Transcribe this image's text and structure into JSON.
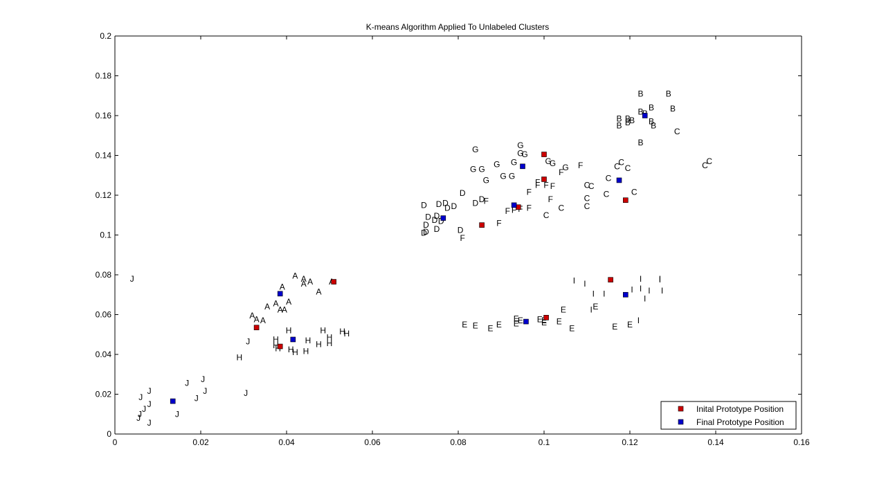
{
  "chart_data": {
    "type": "scatter",
    "title": "K-means Algorithm Applied To Unlabeled Clusters",
    "xlabel": "",
    "ylabel": "",
    "xlim": [
      0,
      0.16
    ],
    "ylim": [
      0,
      0.2
    ],
    "xticks": [
      "0",
      "0.02",
      "0.04",
      "0.06",
      "0.08",
      "0.1",
      "0.12",
      "0.14",
      "0.16"
    ],
    "yticks": [
      "0",
      "0.02",
      "0.04",
      "0.06",
      "0.08",
      "0.1",
      "0.12",
      "0.14",
      "0.16",
      "0.18",
      "0.2"
    ],
    "xtick_values": [
      0,
      0.02,
      0.04,
      0.06,
      0.08,
      0.1,
      0.12,
      0.14,
      0.16
    ],
    "ytick_values": [
      0,
      0.02,
      0.04,
      0.06,
      0.08,
      0.1,
      0.12,
      0.14,
      0.16,
      0.18,
      0.2
    ],
    "grid": false,
    "legend_position": "bottom-right",
    "legend": [
      {
        "label": "Inital Prototype Position",
        "color": "#cc0000"
      },
      {
        "label": "Final Prototype Position",
        "color": "#0000cc"
      }
    ],
    "labeled_points": [
      {
        "label": "J",
        "x": 0.004,
        "y": 0.078
      },
      {
        "label": "A",
        "x": 0.042,
        "y": 0.0795
      },
      {
        "label": "A",
        "x": 0.044,
        "y": 0.078
      },
      {
        "label": "A",
        "x": 0.0455,
        "y": 0.0765
      },
      {
        "label": "A",
        "x": 0.044,
        "y": 0.0755
      },
      {
        "label": "A",
        "x": 0.039,
        "y": 0.074
      },
      {
        "label": "A",
        "x": 0.0475,
        "y": 0.0715
      },
      {
        "label": "A",
        "x": 0.0505,
        "y": 0.0765
      },
      {
        "label": "A",
        "x": 0.0405,
        "y": 0.0665
      },
      {
        "label": "A",
        "x": 0.0375,
        "y": 0.0655
      },
      {
        "label": "A",
        "x": 0.0355,
        "y": 0.064
      },
      {
        "label": "A",
        "x": 0.0385,
        "y": 0.0625
      },
      {
        "label": "A",
        "x": 0.0395,
        "y": 0.0625
      },
      {
        "label": "A",
        "x": 0.032,
        "y": 0.0595
      },
      {
        "label": "A",
        "x": 0.033,
        "y": 0.0575
      },
      {
        "label": "A",
        "x": 0.0345,
        "y": 0.057
      },
      {
        "label": "H",
        "x": 0.0405,
        "y": 0.052
      },
      {
        "label": "H",
        "x": 0.0485,
        "y": 0.052
      },
      {
        "label": "H",
        "x": 0.053,
        "y": 0.0515
      },
      {
        "label": "H",
        "x": 0.054,
        "y": 0.0505
      },
      {
        "label": "H",
        "x": 0.05,
        "y": 0.0485
      },
      {
        "label": "H",
        "x": 0.0375,
        "y": 0.0475
      },
      {
        "label": "H",
        "x": 0.045,
        "y": 0.047
      },
      {
        "label": "H",
        "x": 0.0475,
        "y": 0.045
      },
      {
        "label": "H",
        "x": 0.05,
        "y": 0.0455
      },
      {
        "label": "H",
        "x": 0.0375,
        "y": 0.0445
      },
      {
        "label": "H",
        "x": 0.038,
        "y": 0.043
      },
      {
        "label": "H",
        "x": 0.041,
        "y": 0.0425
      },
      {
        "label": "H",
        "x": 0.042,
        "y": 0.041
      },
      {
        "label": "H",
        "x": 0.0445,
        "y": 0.0415
      },
      {
        "label": "H",
        "x": 0.029,
        "y": 0.0385
      },
      {
        "label": "J",
        "x": 0.031,
        "y": 0.0465
      },
      {
        "label": "J",
        "x": 0.0205,
        "y": 0.0275
      },
      {
        "label": "J",
        "x": 0.0168,
        "y": 0.0255
      },
      {
        "label": "J",
        "x": 0.008,
        "y": 0.0215
      },
      {
        "label": "J",
        "x": 0.021,
        "y": 0.0215
      },
      {
        "label": "J",
        "x": 0.0305,
        "y": 0.0205
      },
      {
        "label": "J",
        "x": 0.006,
        "y": 0.0185
      },
      {
        "label": "J",
        "x": 0.019,
        "y": 0.018
      },
      {
        "label": "J",
        "x": 0.008,
        "y": 0.015
      },
      {
        "label": "J",
        "x": 0.0068,
        "y": 0.0125
      },
      {
        "label": "J",
        "x": 0.0058,
        "y": 0.01
      },
      {
        "label": "J",
        "x": 0.0145,
        "y": 0.01
      },
      {
        "label": "J",
        "x": 0.0055,
        "y": 0.008
      },
      {
        "label": "J",
        "x": 0.008,
        "y": 0.0055
      },
      {
        "label": "B",
        "x": 0.1225,
        "y": 0.171
      },
      {
        "label": "B",
        "x": 0.129,
        "y": 0.171
      },
      {
        "label": "B",
        "x": 0.125,
        "y": 0.164
      },
      {
        "label": "B",
        "x": 0.13,
        "y": 0.1635
      },
      {
        "label": "B",
        "x": 0.1225,
        "y": 0.162
      },
      {
        "label": "B",
        "x": 0.1235,
        "y": 0.161
      },
      {
        "label": "B",
        "x": 0.1175,
        "y": 0.1585
      },
      {
        "label": "B",
        "x": 0.1195,
        "y": 0.1585
      },
      {
        "label": "B",
        "x": 0.1205,
        "y": 0.1575
      },
      {
        "label": "B",
        "x": 0.1195,
        "y": 0.1565
      },
      {
        "label": "B",
        "x": 0.125,
        "y": 0.157
      },
      {
        "label": "B",
        "x": 0.1175,
        "y": 0.155
      },
      {
        "label": "B",
        "x": 0.1255,
        "y": 0.155
      },
      {
        "label": "B",
        "x": 0.1225,
        "y": 0.1465
      },
      {
        "label": "C",
        "x": 0.131,
        "y": 0.152
      },
      {
        "label": "C",
        "x": 0.1385,
        "y": 0.137
      },
      {
        "label": "C",
        "x": 0.1375,
        "y": 0.135
      },
      {
        "label": "C",
        "x": 0.118,
        "y": 0.1365
      },
      {
        "label": "C",
        "x": 0.117,
        "y": 0.1345
      },
      {
        "label": "C",
        "x": 0.1195,
        "y": 0.1335
      },
      {
        "label": "C",
        "x": 0.115,
        "y": 0.1285
      },
      {
        "label": "C",
        "x": 0.11,
        "y": 0.125
      },
      {
        "label": "C",
        "x": 0.111,
        "y": 0.1245
      },
      {
        "label": "C",
        "x": 0.121,
        "y": 0.1215
      },
      {
        "label": "C",
        "x": 0.1145,
        "y": 0.1205
      },
      {
        "label": "C",
        "x": 0.11,
        "y": 0.1185
      },
      {
        "label": "C",
        "x": 0.11,
        "y": 0.1145
      },
      {
        "label": "C",
        "x": 0.104,
        "y": 0.1135
      },
      {
        "label": "C",
        "x": 0.1005,
        "y": 0.11
      },
      {
        "label": "G",
        "x": 0.084,
        "y": 0.143
      },
      {
        "label": "G",
        "x": 0.0945,
        "y": 0.145
      },
      {
        "label": "G",
        "x": 0.0945,
        "y": 0.141
      },
      {
        "label": "G",
        "x": 0.0955,
        "y": 0.1405
      },
      {
        "label": "G",
        "x": 0.101,
        "y": 0.137
      },
      {
        "label": "G",
        "x": 0.102,
        "y": 0.136
      },
      {
        "label": "G",
        "x": 0.093,
        "y": 0.1365
      },
      {
        "label": "G",
        "x": 0.089,
        "y": 0.1355
      },
      {
        "label": "G",
        "x": 0.105,
        "y": 0.134
      },
      {
        "label": "G",
        "x": 0.0835,
        "y": 0.133
      },
      {
        "label": "G",
        "x": 0.0855,
        "y": 0.133
      },
      {
        "label": "G",
        "x": 0.0905,
        "y": 0.1295
      },
      {
        "label": "G",
        "x": 0.0925,
        "y": 0.1295
      },
      {
        "label": "G",
        "x": 0.0865,
        "y": 0.1275
      },
      {
        "label": "F",
        "x": 0.1085,
        "y": 0.135
      },
      {
        "label": "F",
        "x": 0.104,
        "y": 0.1315
      },
      {
        "label": "F",
        "x": 0.0985,
        "y": 0.1265
      },
      {
        "label": "F",
        "x": 0.1005,
        "y": 0.125
      },
      {
        "label": "F",
        "x": 0.0985,
        "y": 0.125
      },
      {
        "label": "F",
        "x": 0.102,
        "y": 0.1245
      },
      {
        "label": "F",
        "x": 0.0965,
        "y": 0.1215
      },
      {
        "label": "F",
        "x": 0.1015,
        "y": 0.118
      },
      {
        "label": "F",
        "x": 0.0865,
        "y": 0.117
      },
      {
        "label": "F",
        "x": 0.093,
        "y": 0.1125
      },
      {
        "label": "F",
        "x": 0.0945,
        "y": 0.113
      },
      {
        "label": "F",
        "x": 0.0965,
        "y": 0.1135
      },
      {
        "label": "F",
        "x": 0.0915,
        "y": 0.112
      },
      {
        "label": "F",
        "x": 0.0895,
        "y": 0.106
      },
      {
        "label": "F",
        "x": 0.081,
        "y": 0.0985
      },
      {
        "label": "D",
        "x": 0.081,
        "y": 0.121
      },
      {
        "label": "D",
        "x": 0.084,
        "y": 0.116
      },
      {
        "label": "D",
        "x": 0.0855,
        "y": 0.118
      },
      {
        "label": "D",
        "x": 0.072,
        "y": 0.115
      },
      {
        "label": "D",
        "x": 0.0755,
        "y": 0.1155
      },
      {
        "label": "D",
        "x": 0.077,
        "y": 0.116
      },
      {
        "label": "D",
        "x": 0.079,
        "y": 0.1145
      },
      {
        "label": "D",
        "x": 0.0775,
        "y": 0.1135
      },
      {
        "label": "D",
        "x": 0.073,
        "y": 0.109
      },
      {
        "label": "D",
        "x": 0.075,
        "y": 0.1095
      },
      {
        "label": "D",
        "x": 0.0745,
        "y": 0.1075
      },
      {
        "label": "D",
        "x": 0.076,
        "y": 0.107
      },
      {
        "label": "D",
        "x": 0.0725,
        "y": 0.105
      },
      {
        "label": "D",
        "x": 0.075,
        "y": 0.103
      },
      {
        "label": "D",
        "x": 0.0805,
        "y": 0.1025
      },
      {
        "label": "D",
        "x": 0.0725,
        "y": 0.1015
      },
      {
        "label": "D",
        "x": 0.072,
        "y": 0.101
      },
      {
        "label": "I",
        "x": 0.107,
        "y": 0.077
      },
      {
        "label": "I",
        "x": 0.1095,
        "y": 0.0755
      },
      {
        "label": "I",
        "x": 0.1225,
        "y": 0.078
      },
      {
        "label": "I",
        "x": 0.127,
        "y": 0.078
      },
      {
        "label": "I",
        "x": 0.127,
        "y": 0.0775
      },
      {
        "label": "I",
        "x": 0.1205,
        "y": 0.0725
      },
      {
        "label": "I",
        "x": 0.1225,
        "y": 0.073
      },
      {
        "label": "I",
        "x": 0.1245,
        "y": 0.072
      },
      {
        "label": "I",
        "x": 0.1275,
        "y": 0.072
      },
      {
        "label": "I",
        "x": 0.1115,
        "y": 0.0705
      },
      {
        "label": "I",
        "x": 0.114,
        "y": 0.0705
      },
      {
        "label": "I",
        "x": 0.1235,
        "y": 0.068
      },
      {
        "label": "I",
        "x": 0.111,
        "y": 0.0625
      },
      {
        "label": "I",
        "x": 0.122,
        "y": 0.057
      },
      {
        "label": "E",
        "x": 0.112,
        "y": 0.064
      },
      {
        "label": "E",
        "x": 0.1045,
        "y": 0.0625
      },
      {
        "label": "E",
        "x": 0.0935,
        "y": 0.058
      },
      {
        "label": "E",
        "x": 0.0945,
        "y": 0.057
      },
      {
        "label": "E",
        "x": 0.0935,
        "y": 0.0555
      },
      {
        "label": "E",
        "x": 0.099,
        "y": 0.0575
      },
      {
        "label": "E",
        "x": 0.1,
        "y": 0.057
      },
      {
        "label": "E",
        "x": 0.1,
        "y": 0.056
      },
      {
        "label": "E",
        "x": 0.1035,
        "y": 0.0565
      },
      {
        "label": "E",
        "x": 0.0815,
        "y": 0.055
      },
      {
        "label": "E",
        "x": 0.084,
        "y": 0.0545
      },
      {
        "label": "E",
        "x": 0.0895,
        "y": 0.055
      },
      {
        "label": "E",
        "x": 0.0875,
        "y": 0.053
      },
      {
        "label": "E",
        "x": 0.1065,
        "y": 0.053
      },
      {
        "label": "E",
        "x": 0.1165,
        "y": 0.054
      },
      {
        "label": "E",
        "x": 0.12,
        "y": 0.055
      }
    ],
    "series": [
      {
        "name": "Inital Prototype Position",
        "color": "#cc0000",
        "marker": "square",
        "points": [
          [
            0.051,
            0.0765
          ],
          [
            0.033,
            0.0535
          ],
          [
            0.0385,
            0.044
          ],
          [
            0.0855,
            0.105
          ],
          [
            0.094,
            0.114
          ],
          [
            0.1,
            0.1405
          ],
          [
            0.1,
            0.128
          ],
          [
            0.119,
            0.1175
          ],
          [
            0.1155,
            0.0775
          ],
          [
            0.1005,
            0.0585
          ]
        ]
      },
      {
        "name": "Final Prototype Position",
        "color": "#0000cc",
        "marker": "square",
        "points": [
          [
            0.0385,
            0.0705
          ],
          [
            0.0415,
            0.0475
          ],
          [
            0.0135,
            0.0165
          ],
          [
            0.0765,
            0.1085
          ],
          [
            0.093,
            0.115
          ],
          [
            0.095,
            0.1345
          ],
          [
            0.1175,
            0.1275
          ],
          [
            0.1235,
            0.16
          ],
          [
            0.119,
            0.07
          ],
          [
            0.0958,
            0.0565
          ]
        ]
      }
    ]
  }
}
